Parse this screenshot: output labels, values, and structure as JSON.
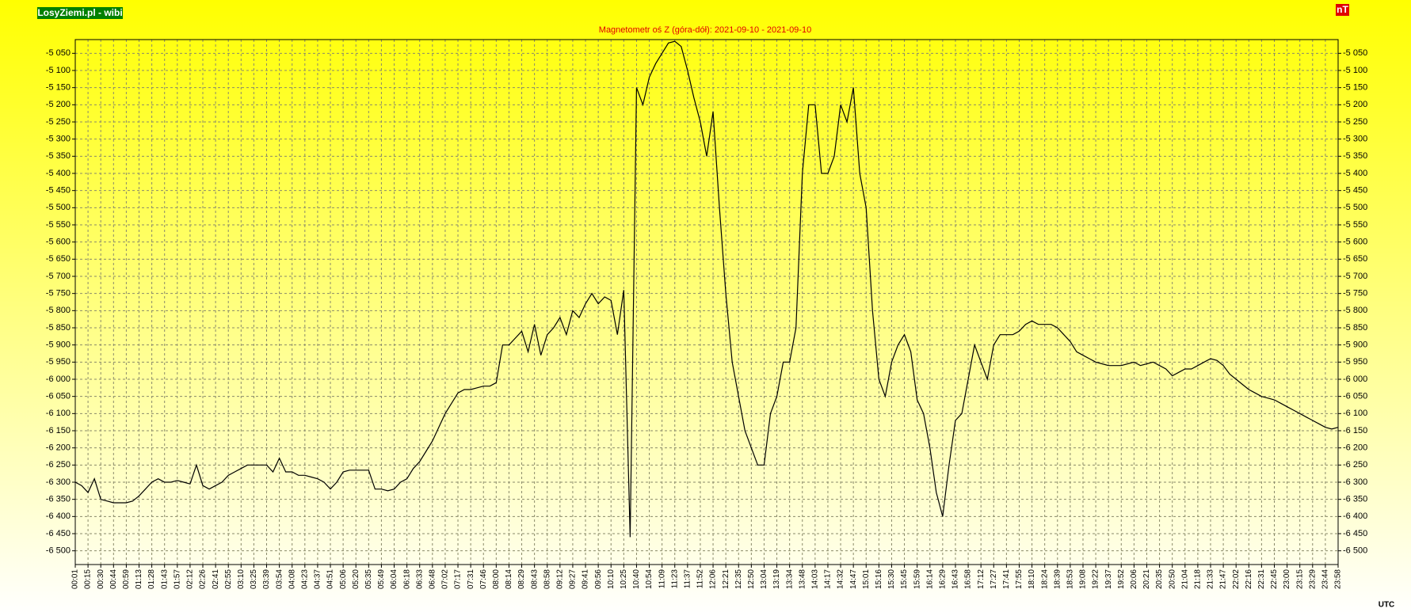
{
  "chart_data": {
    "type": "line",
    "title": "Magnetometr oś Z (góra-dół): 2021-09-10 - 2021-09-10",
    "source_label": "LosyZiemi.pl - wibi",
    "unit_label": "nT",
    "x_label": "UTC",
    "grid": true,
    "categories": [
      "00:01",
      null,
      "00:15",
      null,
      "00:30",
      null,
      "00:44",
      null,
      "00:59",
      null,
      "01:13",
      null,
      "01:28",
      null,
      "01:43",
      null,
      "01:57",
      null,
      "02:12",
      null,
      "02:26",
      null,
      "02:41",
      null,
      "02:55",
      null,
      "03:10",
      null,
      "03:25",
      null,
      "03:39",
      null,
      "03:54",
      null,
      "04:08",
      null,
      "04:23",
      null,
      "04:37",
      null,
      "04:51",
      null,
      "05:06",
      null,
      "05:20",
      null,
      "05:35",
      null,
      "05:49",
      null,
      "06:04",
      null,
      "06:18",
      null,
      "06:33",
      null,
      "06:48",
      null,
      "07:02",
      null,
      "07:17",
      null,
      "07:31",
      null,
      "07:46",
      null,
      "08:00",
      null,
      "08:14",
      null,
      "08:29",
      null,
      "08:43",
      null,
      "08:58",
      null,
      "09:12",
      null,
      "09:27",
      null,
      "09:41",
      null,
      "09:56",
      null,
      "10:10",
      null,
      "10:25",
      null,
      "10:40",
      null,
      "10:54",
      null,
      "11:09",
      null,
      "11:23",
      null,
      "11:37",
      null,
      "11:52",
      null,
      "12:06",
      null,
      "12:21",
      null,
      "12:35",
      null,
      "12:50",
      null,
      "13:04",
      null,
      "13:19",
      null,
      "13:34",
      null,
      "13:48",
      null,
      "14:03",
      null,
      "14:17",
      null,
      "14:32",
      null,
      "14:47",
      null,
      "15:01",
      null,
      "15:16",
      null,
      "15:30",
      null,
      "15:45",
      null,
      "15:59",
      null,
      "16:14",
      null,
      "16:29",
      null,
      "16:43",
      null,
      "16:58",
      null,
      "17:12",
      null,
      "17:27",
      null,
      "17:41",
      null,
      "17:55",
      null,
      "18:10",
      null,
      "18:24",
      null,
      "18:39",
      null,
      "18:53",
      null,
      "19:08",
      null,
      "19:22",
      null,
      "19:37",
      null,
      "19:52",
      null,
      "20:06",
      null,
      "20:21",
      null,
      "20:35",
      null,
      "20:50",
      null,
      "21:04",
      null,
      "21:18",
      null,
      "21:33",
      null,
      "21:47",
      null,
      "22:02",
      null,
      "22:16",
      null,
      "22:31",
      null,
      "22:45",
      null,
      "23:00",
      null,
      "23:15",
      null,
      "23:29",
      null,
      "23:44",
      null,
      "23:58"
    ],
    "series": [
      {
        "name": "Z",
        "color": "#000000",
        "values": [
          -6300,
          -6310,
          -6330,
          -6290,
          -6350,
          -6355,
          -6360,
          -6360,
          -6360,
          -6355,
          -6340,
          -6320,
          -6300,
          -6290,
          -6300,
          -6300,
          -6295,
          -6300,
          -6305,
          -6250,
          -6310,
          -6320,
          -6310,
          -6300,
          -6280,
          -6270,
          -6260,
          -6250,
          -6250,
          -6250,
          -6250,
          -6270,
          -6230,
          -6270,
          -6270,
          -6280,
          -6280,
          -6285,
          -6290,
          -6300,
          -6320,
          -6300,
          -6270,
          -6265,
          -6265,
          -6265,
          -6265,
          -6320,
          -6320,
          -6325,
          -6320,
          -6300,
          -6290,
          -6260,
          -6240,
          -6210,
          -6180,
          -6140,
          -6100,
          -6070,
          -6040,
          -6030,
          -6030,
          -6025,
          -6020,
          -6020,
          -6010,
          -5900,
          -5900,
          -5880,
          -5860,
          -5920,
          -5840,
          -5930,
          -5870,
          -5850,
          -5820,
          -5870,
          -5800,
          -5820,
          -5780,
          -5750,
          -5780,
          -5760,
          -5770,
          -5870,
          -5740,
          -6460,
          -5150,
          -5200,
          -5120,
          -5080,
          -5050,
          -5020,
          -5015,
          -5030,
          -5100,
          -5180,
          -5250,
          -5350,
          -5220,
          -5500,
          -5750,
          -5950,
          -6050,
          -6150,
          -6200,
          -6250,
          -6250,
          -6100,
          -6050,
          -5950,
          -5950,
          -5850,
          -5400,
          -5200,
          -5200,
          -5400,
          -5400,
          -5350,
          -5200,
          -5250,
          -5150,
          -5400,
          -5500,
          -5800,
          -6000,
          -6050,
          -5950,
          -5900,
          -5870,
          -5920,
          -6060,
          -6100,
          -6200,
          -6330,
          -6400,
          -6250,
          -6120,
          -6100,
          -6000,
          -5900,
          -5950,
          -6000,
          -5900,
          -5870,
          -5870,
          -5870,
          -5860,
          -5840,
          -5830,
          -5840,
          -5840,
          -5840,
          -5850,
          -5870,
          -5890,
          -5920,
          -5930,
          -5940,
          -5950,
          -5955,
          -5960,
          -5960,
          -5960,
          -5955,
          -5950,
          -5960,
          -5955,
          -5950,
          -5960,
          -5970,
          -5990,
          -5980,
          -5970,
          -5970,
          -5960,
          -5950,
          -5940,
          -5945,
          -5960,
          -5985,
          -6000,
          -6015,
          -6030,
          -6040,
          -6050,
          -6055,
          -6060,
          -6070,
          -6080,
          -6090,
          -6100,
          -6110,
          -6120,
          -6130,
          -6140,
          -6145,
          -6140
        ]
      }
    ],
    "ylim": [
      -6540,
      -5010
    ],
    "yticks": [
      {
        "value": -5050,
        "label": "-5 050"
      },
      {
        "value": -5100,
        "label": "-5 100"
      },
      {
        "value": -5150,
        "label": "-5 150"
      },
      {
        "value": -5200,
        "label": "-5 200"
      },
      {
        "value": -5250,
        "label": "-5 250"
      },
      {
        "value": -5300,
        "label": "-5 300"
      },
      {
        "value": -5350,
        "label": "-5 350"
      },
      {
        "value": -5400,
        "label": "-5 400"
      },
      {
        "value": -5450,
        "label": "-5 450"
      },
      {
        "value": -5500,
        "label": "-5 500"
      },
      {
        "value": -5550,
        "label": "-5 550"
      },
      {
        "value": -5600,
        "label": "-5 600"
      },
      {
        "value": -5650,
        "label": "-5 650"
      },
      {
        "value": -5700,
        "label": "-5 700"
      },
      {
        "value": -5750,
        "label": "-5 750"
      },
      {
        "value": -5800,
        "label": "-5 800"
      },
      {
        "value": -5850,
        "label": "-5 850"
      },
      {
        "value": -5900,
        "label": "-5 900"
      },
      {
        "value": -5950,
        "label": "-5 950"
      },
      {
        "value": -6000,
        "label": "-6 000"
      },
      {
        "value": -6050,
        "label": "-6 050"
      },
      {
        "value": -6100,
        "label": "-6 100"
      },
      {
        "value": -6150,
        "label": "-6 150"
      },
      {
        "value": -6200,
        "label": "-6 200"
      },
      {
        "value": -6250,
        "label": "-6 250"
      },
      {
        "value": -6300,
        "label": "-6 300"
      },
      {
        "value": -6350,
        "label": "-6 350"
      },
      {
        "value": -6400,
        "label": "-6 400"
      },
      {
        "value": -6450,
        "label": "-6 450"
      },
      {
        "value": -6500,
        "label": "-6 500"
      }
    ]
  }
}
